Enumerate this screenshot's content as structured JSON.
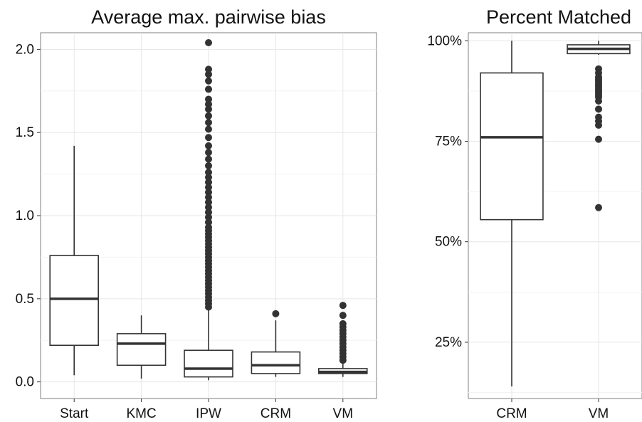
{
  "chart_data": [
    {
      "type": "box",
      "title": "Average max. pairwise bias",
      "xlabel": "",
      "ylabel": "",
      "categories": [
        "Start",
        "KMC",
        "IPW",
        "CRM",
        "VM"
      ],
      "y_ticks": [
        0.0,
        0.5,
        1.0,
        1.5,
        2.0
      ],
      "y_tick_labels": [
        "0.0",
        "0.5",
        "1.0",
        "1.5",
        "2.0"
      ],
      "ylim": [
        -0.1,
        2.1
      ],
      "grid": true,
      "boxes": [
        {
          "label": "Start",
          "whisker_low": 0.04,
          "q1": 0.22,
          "median": 0.5,
          "q3": 0.76,
          "whisker_high": 1.42,
          "outliers": []
        },
        {
          "label": "KMC",
          "whisker_low": 0.02,
          "q1": 0.1,
          "median": 0.23,
          "q3": 0.29,
          "whisker_high": 0.4,
          "outliers": []
        },
        {
          "label": "IPW",
          "whisker_low": 0.01,
          "q1": 0.03,
          "median": 0.08,
          "q3": 0.19,
          "whisker_high": 0.44,
          "outliers": [
            0.45,
            0.47,
            0.49,
            0.51,
            0.53,
            0.55,
            0.57,
            0.59,
            0.61,
            0.63,
            0.65,
            0.67,
            0.69,
            0.71,
            0.73,
            0.75,
            0.77,
            0.79,
            0.81,
            0.83,
            0.85,
            0.87,
            0.89,
            0.91,
            0.93,
            0.96,
            0.99,
            1.02,
            1.05,
            1.08,
            1.11,
            1.14,
            1.17,
            1.2,
            1.23,
            1.26,
            1.3,
            1.34,
            1.38,
            1.42,
            1.47,
            1.52,
            1.56,
            1.6,
            1.64,
            1.67,
            1.7,
            1.76,
            1.81,
            1.85,
            1.88,
            2.04
          ]
        },
        {
          "label": "CRM",
          "whisker_low": 0.03,
          "q1": 0.05,
          "median": 0.1,
          "q3": 0.18,
          "whisker_high": 0.37,
          "outliers": [
            0.41
          ]
        },
        {
          "label": "VM",
          "whisker_low": 0.03,
          "q1": 0.05,
          "median": 0.06,
          "q3": 0.08,
          "whisker_high": 0.11,
          "outliers": [
            0.13,
            0.15,
            0.17,
            0.19,
            0.21,
            0.23,
            0.25,
            0.27,
            0.29,
            0.31,
            0.33,
            0.35,
            0.4,
            0.46
          ]
        }
      ]
    },
    {
      "type": "box",
      "title": "Percent Matched",
      "xlabel": "",
      "ylabel": "",
      "categories": [
        "CRM",
        "VM"
      ],
      "y_ticks": [
        25,
        50,
        75,
        100
      ],
      "y_tick_labels": [
        "25%",
        "50%",
        "75%",
        "100%"
      ],
      "ylim": [
        11,
        102
      ],
      "grid": true,
      "boxes": [
        {
          "label": "CRM",
          "whisker_low": 14,
          "q1": 55.5,
          "median": 76,
          "q3": 92,
          "whisker_high": 100,
          "outliers": []
        },
        {
          "label": "VM",
          "whisker_low": 96.5,
          "q1": 96.8,
          "median": 98,
          "q3": 99,
          "whisker_high": 100,
          "outliers": [
            93,
            92,
            91,
            90.5,
            90,
            89.5,
            89,
            88.5,
            88,
            87.5,
            87,
            86.5,
            86,
            85,
            83,
            81,
            80,
            79,
            75.5,
            58.5
          ]
        }
      ]
    }
  ]
}
